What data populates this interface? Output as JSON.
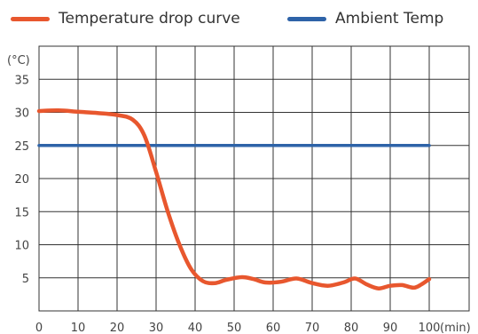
{
  "chart_data": {
    "type": "line",
    "xlabel": "(min)",
    "ylabel": "(°C)",
    "xlim": [
      0,
      100
    ],
    "ylim": [
      0,
      40
    ],
    "x_ticks": [
      "0",
      "10",
      "20",
      "30",
      "40",
      "50",
      "60",
      "70",
      "80",
      "90",
      "100"
    ],
    "y_ticks": [
      "5",
      "10",
      "15",
      "20",
      "25",
      "30",
      "35"
    ],
    "grid": true,
    "legend_placement": "top",
    "series": [
      {
        "name": "Temperature drop curve",
        "color": "#E8572E",
        "points": [
          [
            0,
            30.2
          ],
          [
            5,
            30.3
          ],
          [
            10,
            30.1
          ],
          [
            15,
            29.9
          ],
          [
            20,
            29.6
          ],
          [
            24,
            28.9
          ],
          [
            27,
            26.5
          ],
          [
            30,
            21.0
          ],
          [
            33,
            15.0
          ],
          [
            36,
            10.0
          ],
          [
            39,
            6.3
          ],
          [
            42,
            4.5
          ],
          [
            45,
            4.2
          ],
          [
            48,
            4.7
          ],
          [
            52,
            5.1
          ],
          [
            55,
            4.8
          ],
          [
            58,
            4.3
          ],
          [
            62,
            4.4
          ],
          [
            66,
            4.9
          ],
          [
            70,
            4.2
          ],
          [
            74,
            3.8
          ],
          [
            78,
            4.3
          ],
          [
            81,
            4.9
          ],
          [
            84,
            4.0
          ],
          [
            87,
            3.4
          ],
          [
            90,
            3.8
          ],
          [
            93,
            3.9
          ],
          [
            96,
            3.5
          ],
          [
            98,
            4.0
          ],
          [
            100,
            4.8
          ]
        ]
      },
      {
        "name": "Ambient Temp",
        "color": "#2E63A8",
        "points": [
          [
            0,
            25
          ],
          [
            100,
            25
          ]
        ]
      }
    ]
  }
}
